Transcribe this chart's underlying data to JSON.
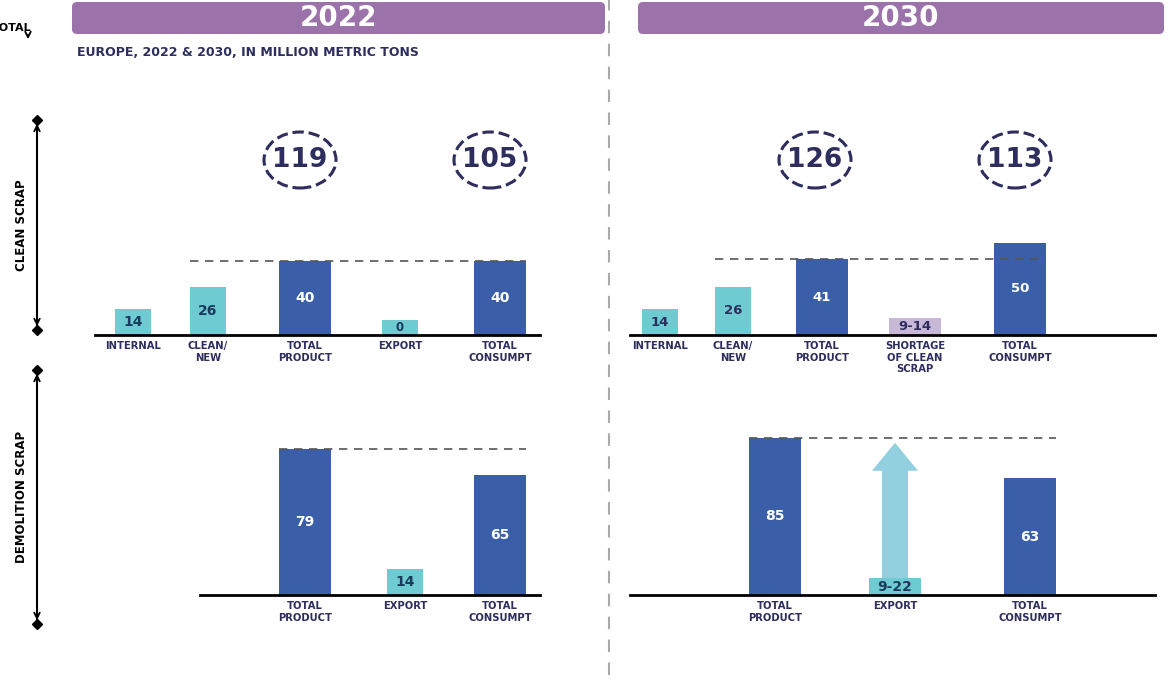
{
  "title_2022": "2022",
  "title_2030": "2030",
  "subtitle": "EUROPE, 2022 & 2030, IN MILLION METRIC TONS",
  "header_color": "#9b72aa",
  "bg_color": "#ffffff",
  "light_blue": "#6ecbd1",
  "dark_blue": "#3a5ea8",
  "light_purple": "#c8b8d8",
  "arrow_color": "#92d0e0",
  "text_dark": "#2d2d5e",
  "clean_scrap_2022": {
    "categories": [
      "INTERNAL",
      "CLEAN/\nNEW",
      "TOTAL\nPRODUCT",
      "EXPORT",
      "TOTAL\nCONSUMPT"
    ],
    "values": [
      14,
      26,
      40,
      0,
      40
    ],
    "colors": [
      "#6ecbd1",
      "#6ecbd1",
      "#3a5ea8",
      "#6ecbd1",
      "#3a5ea8"
    ],
    "total_avail": "119",
    "total_demand": "105"
  },
  "clean_scrap_2030": {
    "categories": [
      "INTERNAL",
      "CLEAN/\nNEW",
      "TOTAL\nPRODUCT",
      "SHORTAGE\nOF CLEAN\nSCRAP",
      "TOTAL\nCONSUMPT"
    ],
    "values": [
      14,
      26,
      41,
      9,
      50
    ],
    "colors": [
      "#6ecbd1",
      "#6ecbd1",
      "#3a5ea8",
      "#c8b8d8",
      "#3a5ea8"
    ],
    "shortage_label": "9-14",
    "total_avail": "126",
    "total_demand": "113"
  },
  "demo_scrap_2022": {
    "categories": [
      "TOTAL\nPRODUCT",
      "EXPORT",
      "TOTAL\nCONSUMPT"
    ],
    "values": [
      79,
      14,
      65
    ],
    "colors": [
      "#3a5ea8",
      "#6ecbd1",
      "#3a5ea8"
    ]
  },
  "demo_scrap_2030": {
    "categories": [
      "TOTAL\nPRODUCT",
      "EXPORT",
      "TOTAL\nCONSUMPT"
    ],
    "values": [
      85,
      9,
      63
    ],
    "colors": [
      "#3a5ea8",
      "#6ecbd1",
      "#3a5ea8"
    ],
    "export_label": "9-22"
  }
}
